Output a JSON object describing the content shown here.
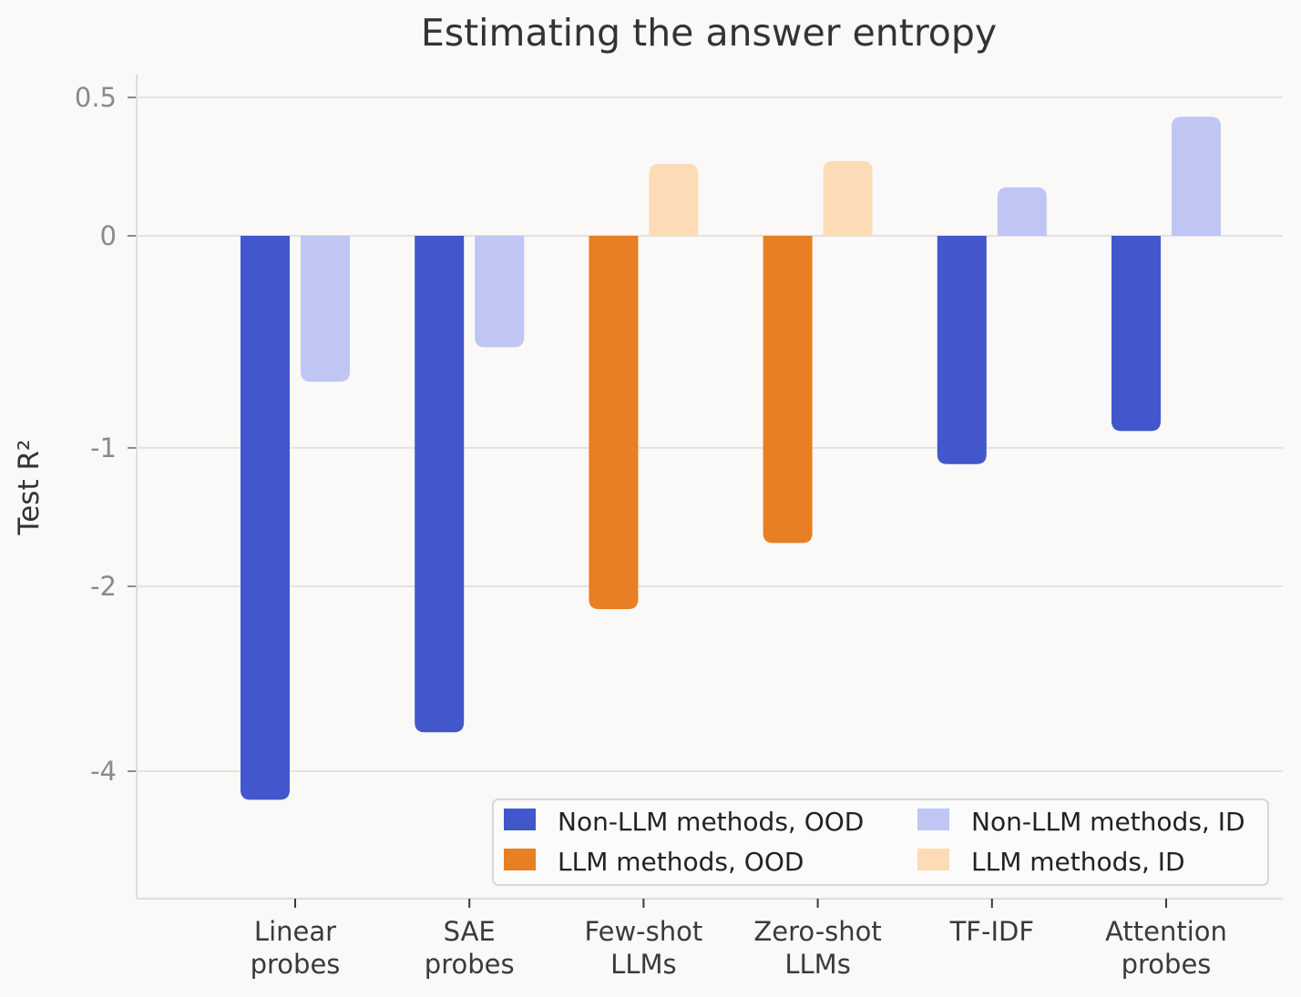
{
  "chart_data": {
    "type": "bar",
    "title": "Estimating the answer entropy",
    "xlabel": "",
    "ylabel": "Test R²",
    "y_scale": "symmetric-log",
    "ylim": [
      -4.6,
      0.58
    ],
    "yticks": [
      {
        "value": 0.5,
        "label": "0.5"
      },
      {
        "value": 0,
        "label": "0"
      },
      {
        "value": -1,
        "label": "-1"
      },
      {
        "value": -2,
        "label": "-2"
      },
      {
        "value": -4,
        "label": "-4"
      }
    ],
    "categories": [
      [
        "Linear",
        "probes"
      ],
      [
        "SAE",
        "probes"
      ],
      [
        "Few-shot",
        "LLMs"
      ],
      [
        "Zero-shot",
        "LLMs"
      ],
      [
        "TF-IDF"
      ],
      [
        "Attention",
        "probes"
      ]
    ],
    "series": [
      {
        "name": "OOD",
        "values": [
          -4.4,
          -3.5,
          -2.2,
          -1.65,
          -1.1,
          -0.9
        ]
      },
      {
        "name": "ID",
        "values": [
          -0.63,
          -0.46,
          0.26,
          0.27,
          0.175,
          0.43
        ]
      }
    ],
    "bar_colors": [
      [
        "#4157cb",
        "#bfc6f3"
      ],
      [
        "#4157cb",
        "#bfc6f3"
      ],
      [
        "#e77f24",
        "#fcdbb6"
      ],
      [
        "#e77f24",
        "#fcdbb6"
      ],
      [
        "#4157cb",
        "#bfc6f3"
      ],
      [
        "#4157cb",
        "#bfc6f3"
      ]
    ],
    "legend": {
      "placement": "lower-right",
      "entries": [
        {
          "label": "Non-LLM methods, OOD",
          "color": "#4157cb"
        },
        {
          "label": "Non-LLM methods, ID",
          "color": "#bfc6f3"
        },
        {
          "label": "LLM methods, OOD",
          "color": "#e77f24"
        },
        {
          "label": "LLM methods, ID",
          "color": "#fcdbb6"
        }
      ]
    },
    "grid": true,
    "colors": {
      "background": "#faf9f7",
      "grid": "#e2e2e2",
      "axis": "#dcdcdc"
    }
  }
}
